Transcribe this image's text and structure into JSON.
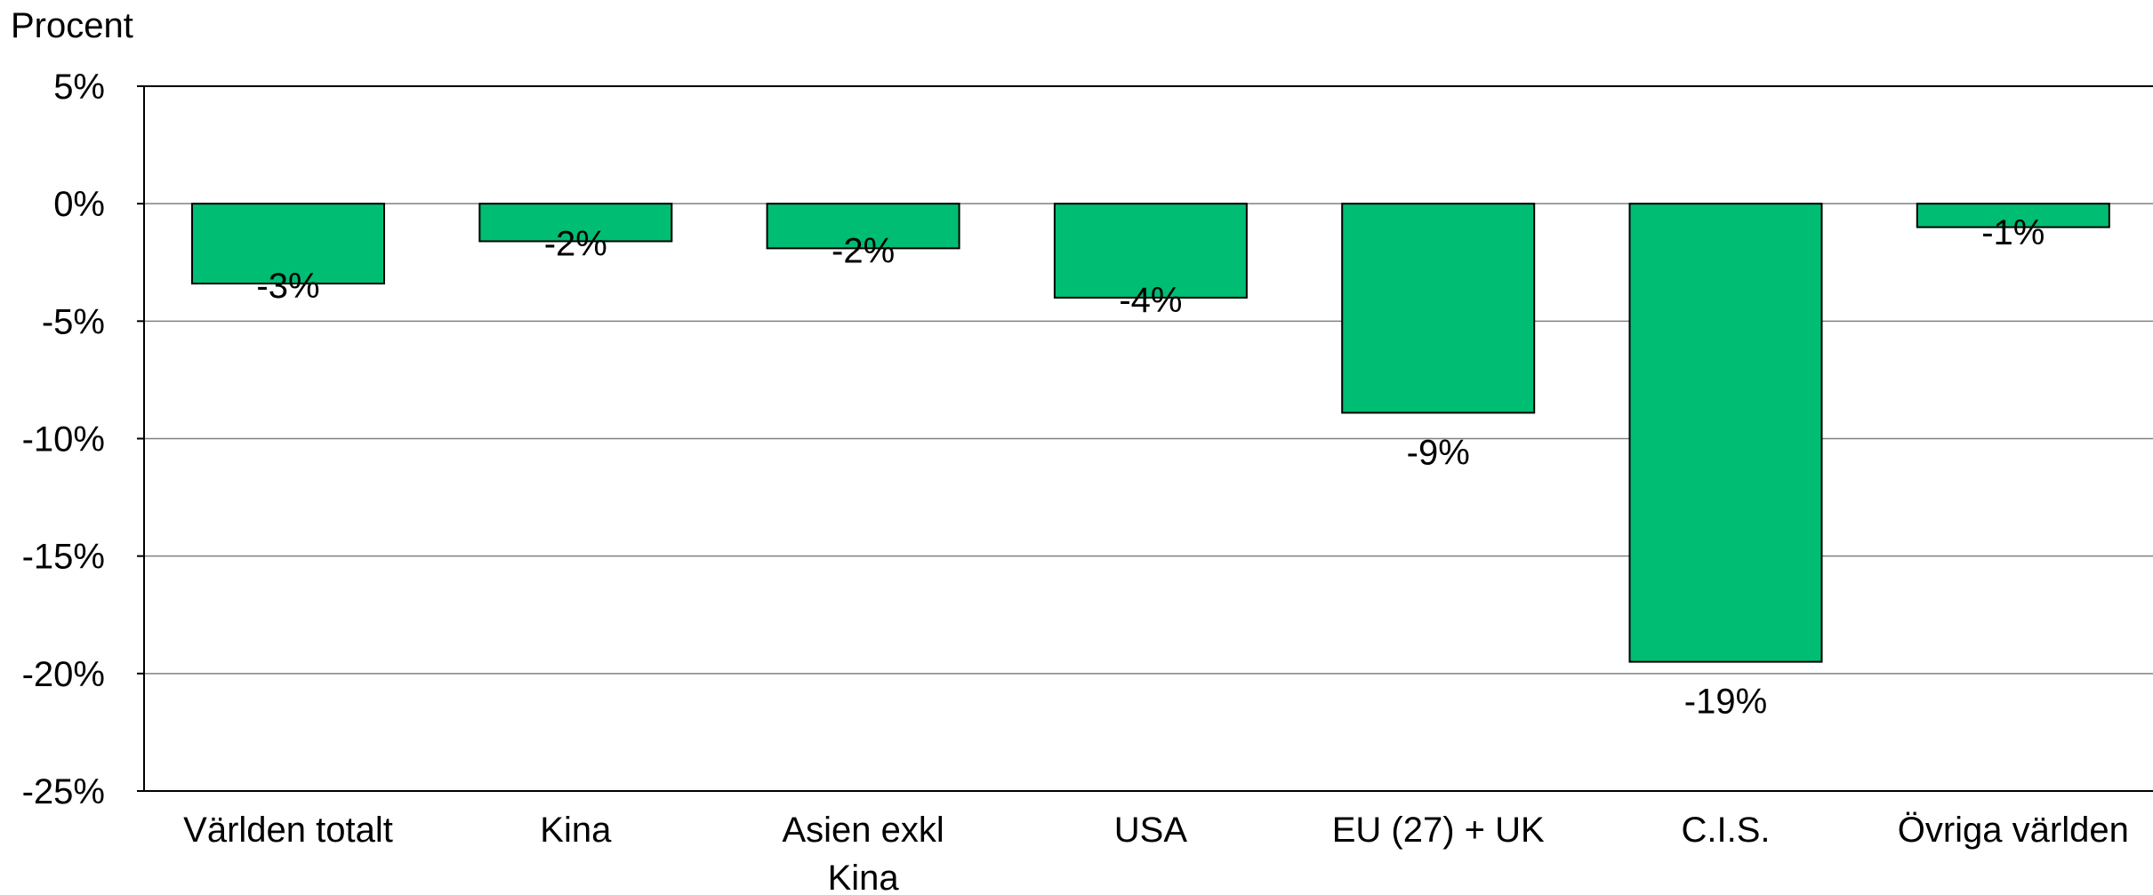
{
  "chart_data": {
    "type": "bar",
    "title": "",
    "xlabel": "",
    "ylabel": "Procent",
    "ylim": [
      -25,
      5
    ],
    "yticks": [
      5,
      0,
      -5,
      -10,
      -15,
      -20,
      -25
    ],
    "ytick_labels": [
      "5%",
      "0%",
      "-5%",
      "-10%",
      "-15%",
      "-20%",
      "-25%"
    ],
    "categories": [
      "Världen totalt",
      "Kina",
      "Asien exkl Kina",
      "USA",
      "EU (27) + UK",
      "C.I.S.",
      "Övriga världen"
    ],
    "values": [
      -3.4,
      -1.6,
      -1.9,
      -4.0,
      -8.9,
      -19.5,
      -1.0
    ],
    "data_labels": [
      "-3%",
      "-2%",
      "-2%",
      "-4%",
      "-9%",
      "-19%",
      "-1%"
    ],
    "grid": true,
    "legend": "none",
    "colors": {
      "bar_fill": "#00BD74",
      "bar_stroke": "#000000",
      "grid": "#808080",
      "axis": "#000000"
    }
  }
}
